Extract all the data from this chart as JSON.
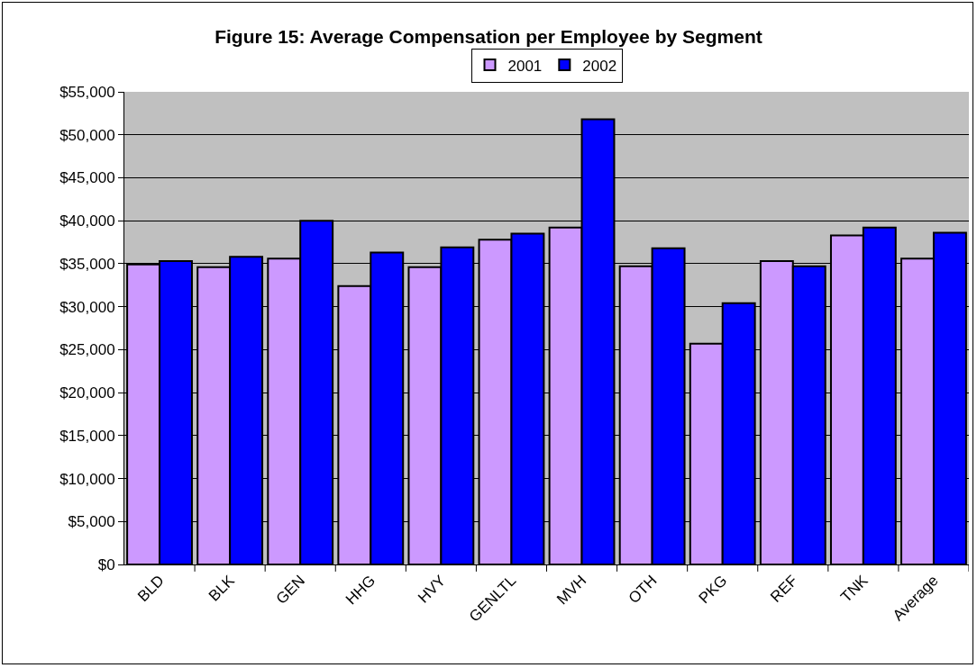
{
  "chart_data": {
    "type": "bar",
    "title": "Figure 15: Average Compensation per Employee by Segment",
    "categories": [
      "BLD",
      "BLK",
      "GEN",
      "HHG",
      "HVY",
      "GENLTL",
      "MVH",
      "OTH",
      "PKG",
      "REF",
      "TNK",
      "Average"
    ],
    "series": [
      {
        "name": "2001",
        "color": "#cc99ff",
        "values": [
          34900,
          34600,
          35600,
          32400,
          34600,
          37800,
          39200,
          34700,
          25700,
          35300,
          38300,
          35600
        ]
      },
      {
        "name": "2002",
        "color": "#0000ff",
        "values": [
          35300,
          35800,
          40000,
          36300,
          36900,
          38500,
          51800,
          36800,
          30400,
          34700,
          39200,
          38600
        ]
      }
    ],
    "ylim": [
      0,
      55000
    ],
    "yticks": [
      {
        "value": 0,
        "label": "$0"
      },
      {
        "value": 5000,
        "label": "$5,000"
      },
      {
        "value": 10000,
        "label": "$10,000"
      },
      {
        "value": 15000,
        "label": "$15,000"
      },
      {
        "value": 20000,
        "label": "$20,000"
      },
      {
        "value": 25000,
        "label": "$25,000"
      },
      {
        "value": 30000,
        "label": "$30,000"
      },
      {
        "value": 35000,
        "label": "$35,000"
      },
      {
        "value": 40000,
        "label": "$40,000"
      },
      {
        "value": 45000,
        "label": "$45,000"
      },
      {
        "value": 50000,
        "label": "$50,000"
      },
      {
        "value": 55000,
        "label": "$55,000"
      }
    ],
    "grid": "y",
    "legend": "top"
  }
}
